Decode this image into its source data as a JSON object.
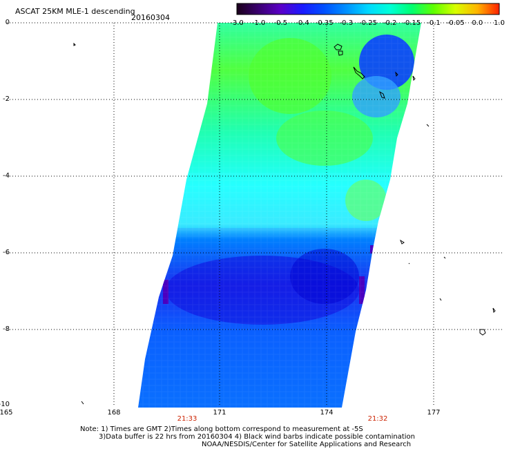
{
  "header": {
    "title": "ASCAT 25KM MLE-1 descending",
    "date": "20160304"
  },
  "colorbar": {
    "labels": [
      "-3.0",
      "-1.0",
      "-0.5",
      "-0.4",
      "-0.35",
      "-0.3",
      "-0.25",
      "-0.2",
      "-0.15",
      "-0.1",
      "-0.05",
      "0.0",
      "1.0"
    ],
    "colors": [
      "#1a001a",
      "#3a0070",
      "#5a00c8",
      "#1a1aff",
      "#0050ff",
      "#0090ff",
      "#00d8ff",
      "#00ffd8",
      "#00ff70",
      "#60ff00",
      "#d8ff00",
      "#ffb400",
      "#ff2000"
    ]
  },
  "axes": {
    "y_labels": [
      "0",
      "-2",
      "-4",
      "-6",
      "-8",
      "-10"
    ],
    "x_labels": [
      "165",
      "168",
      "171",
      "174",
      "177"
    ],
    "time_labels": [
      "21:33",
      "21:32"
    ]
  },
  "notes": {
    "line1": "Note: 1) Times are GMT 2)Times along bottom correspond to measurement at -5S",
    "line2": "3)Data buffer is 22 hrs from 20160304 4) Black wind barbs indicate possible contamination",
    "line3": "NOAA/NESDIS/Center for Satellite Applications and Research"
  },
  "colors": {
    "grid": "#000000",
    "time_label": "#cc2200"
  }
}
